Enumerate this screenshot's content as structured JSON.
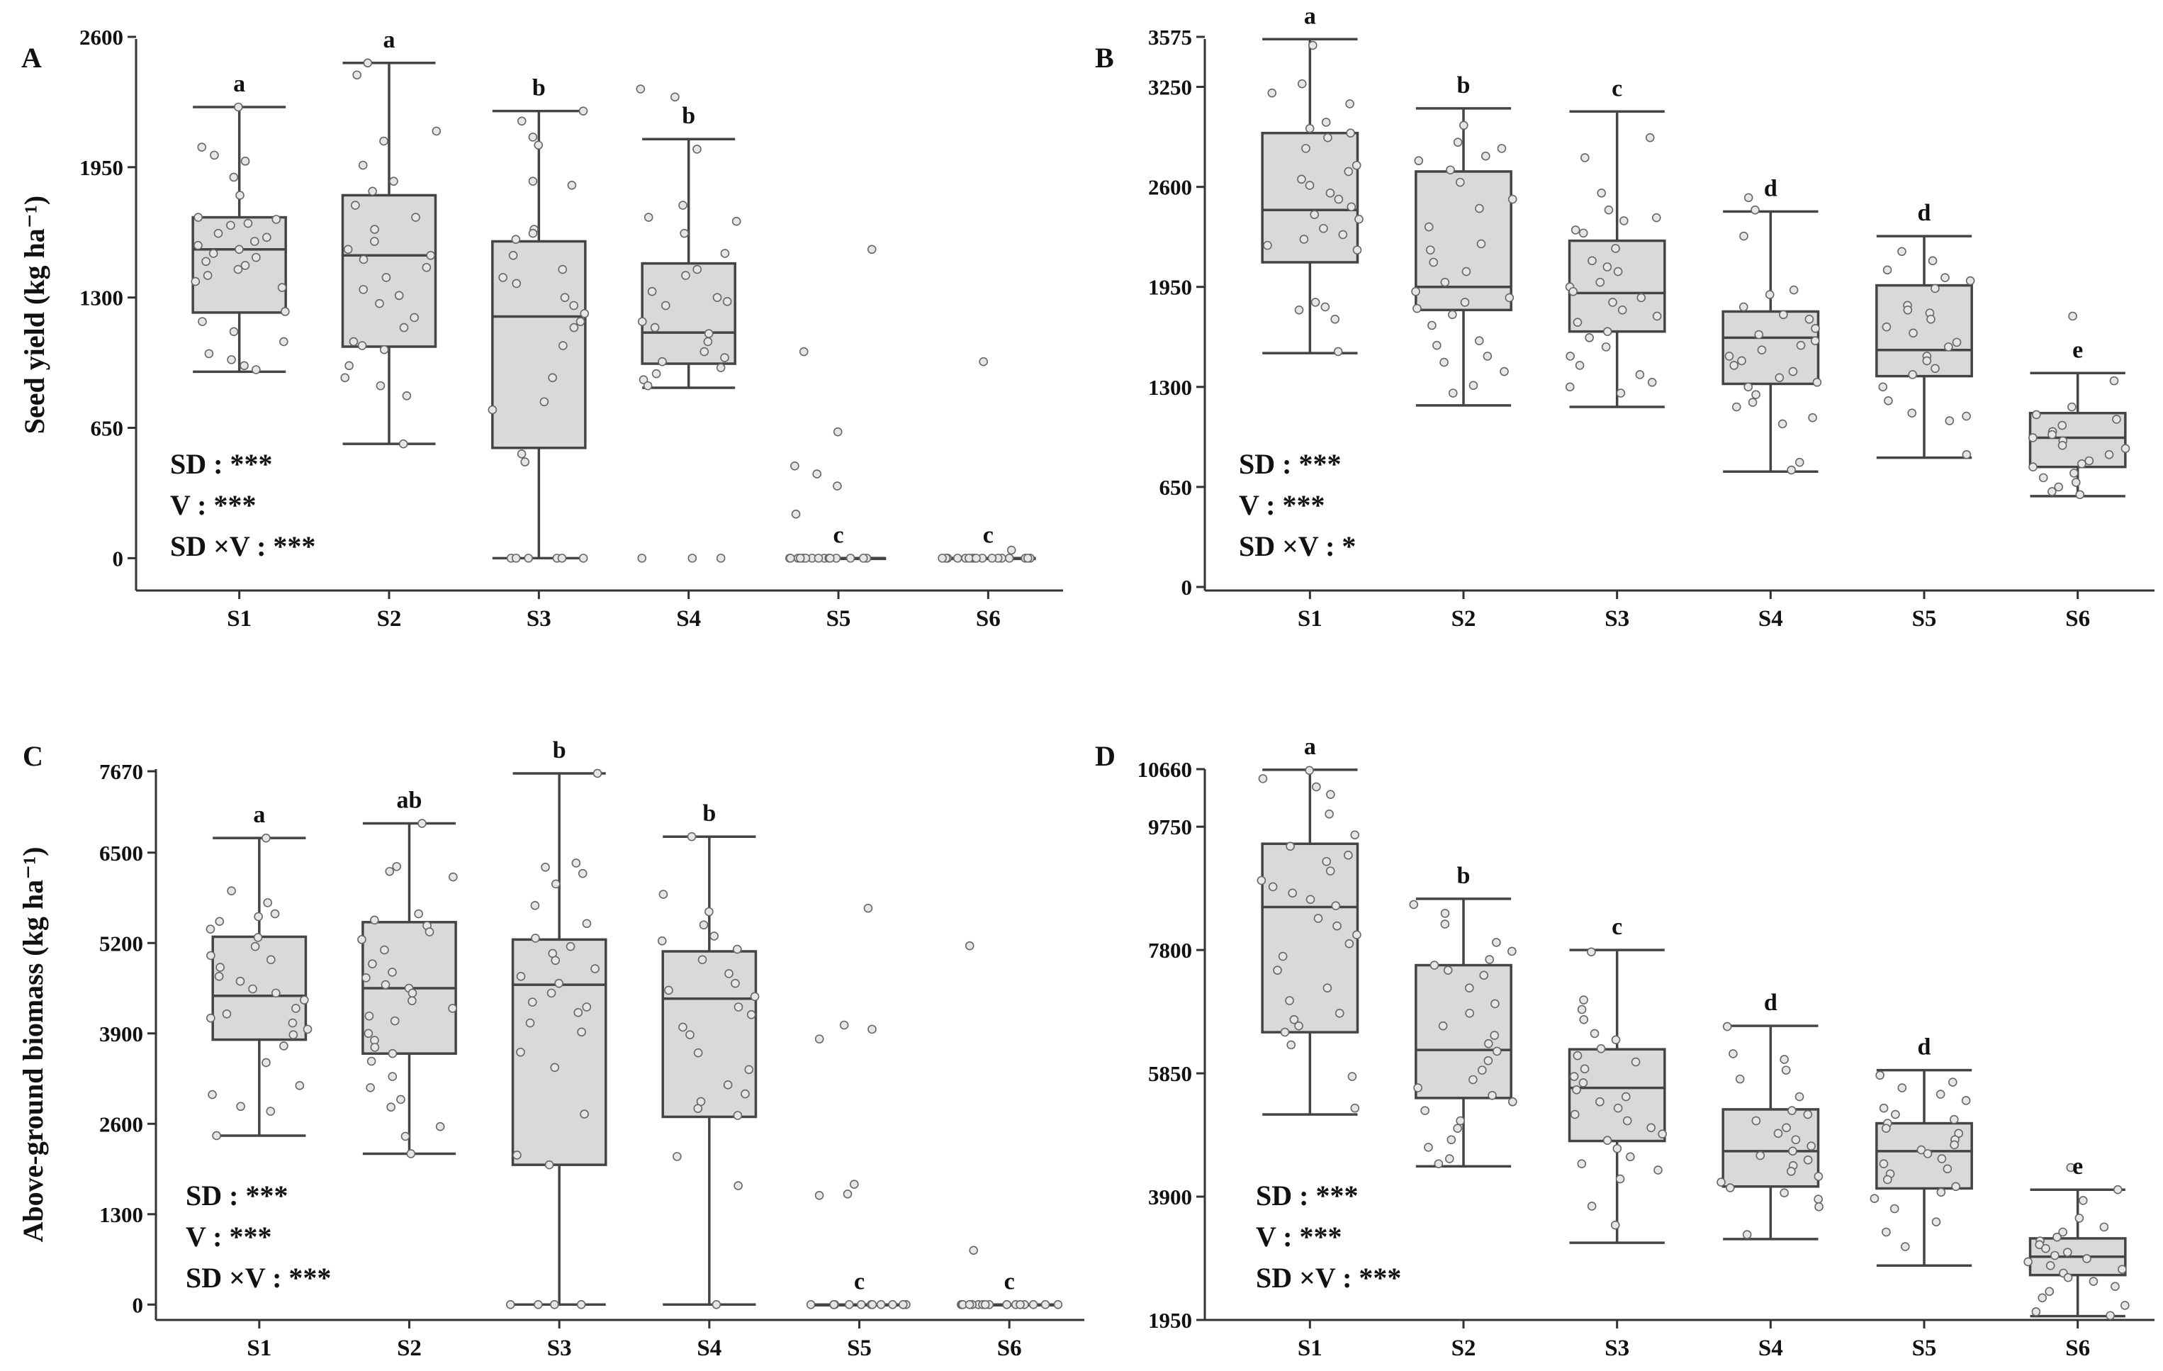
{
  "chart_data": [
    {
      "type": "box",
      "panel": "A",
      "ylabel": "Seed yield (kg ha⁻¹)",
      "yticks": [
        0,
        650,
        1300,
        1950,
        2600
      ],
      "ylim": [
        -80,
        2600
      ],
      "categories": [
        "S1",
        "S2",
        "S3",
        "S4",
        "S5",
        "S6"
      ],
      "boxes": [
        {
          "min": 930,
          "q1": 1225,
          "median": 1540,
          "q3": 1700,
          "max": 2250,
          "letter": "a"
        },
        {
          "min": 570,
          "q1": 1055,
          "median": 1510,
          "q3": 1810,
          "max": 2470,
          "letter": "a"
        },
        {
          "min": 0,
          "q1": 550,
          "median": 1205,
          "q3": 1580,
          "max": 2230,
          "letter": "b"
        },
        {
          "min": 850,
          "q1": 970,
          "median": 1125,
          "q3": 1470,
          "max": 2090,
          "letter": "b"
        },
        {
          "min": 0,
          "q1": 0,
          "median": 0,
          "q3": 0,
          "max": 0,
          "letter": "c"
        },
        {
          "min": 0,
          "q1": 0,
          "median": 0,
          "q3": 0,
          "max": 0,
          "letter": "c"
        }
      ],
      "points": [
        [
          2250,
          1980,
          2050,
          2010,
          1900,
          1810,
          1700,
          1690,
          1670,
          1660,
          1620,
          1600,
          1580,
          1560,
          1540,
          1520,
          1500,
          1480,
          1460,
          1440,
          1410,
          1380,
          1350,
          1230,
          1180,
          1130,
          1080,
          1020,
          990,
          960,
          940
        ],
        [
          2470,
          2410,
          2130,
          2080,
          1960,
          1880,
          1830,
          1760,
          1700,
          1640,
          1580,
          1540,
          1510,
          1490,
          1450,
          1400,
          1340,
          1310,
          1270,
          1200,
          1150,
          1080,
          1060,
          1040,
          960,
          900,
          860,
          810,
          570
        ],
        [
          2230,
          2180,
          2100,
          2060,
          1880,
          1860,
          1640,
          1620,
          1590,
          1510,
          1440,
          1400,
          1370,
          1300,
          1260,
          1220,
          1180,
          1150,
          1060,
          900,
          780,
          740,
          520,
          480,
          0,
          0,
          0,
          0,
          0,
          0
        ],
        [
          2340,
          2300,
          2040,
          1760,
          1700,
          1680,
          1620,
          1520,
          1440,
          1410,
          1330,
          1300,
          1280,
          1260,
          1180,
          1150,
          1120,
          1080,
          1030,
          1000,
          980,
          950,
          920,
          890,
          860,
          0,
          0,
          0
        ],
        [
          1540,
          1030,
          630,
          460,
          420,
          360,
          220,
          0,
          0,
          0,
          0,
          0,
          0,
          0,
          0,
          0,
          0,
          0,
          0,
          0,
          0,
          0
        ],
        [
          980,
          40,
          0,
          0,
          0,
          0,
          0,
          0,
          0,
          0,
          0,
          0,
          0,
          0,
          0,
          0,
          0,
          0,
          0,
          0
        ]
      ],
      "stats": [
        "SD : ***",
        "V : ***",
        "SD ×V : ***"
      ]
    },
    {
      "type": "box",
      "panel": "B",
      "ylabel": "",
      "yticks": [
        0,
        650,
        1300,
        1950,
        2600,
        3250,
        3575
      ],
      "ylim": [
        0,
        3575
      ],
      "categories": [
        "S1",
        "S2",
        "S3",
        "S4",
        "S5",
        "S6"
      ],
      "boxes": [
        {
          "min": 1520,
          "q1": 2110,
          "median": 2450,
          "q3": 2950,
          "max": 3560,
          "letter": "a"
        },
        {
          "min": 1180,
          "q1": 1800,
          "median": 1950,
          "q3": 2700,
          "max": 3110,
          "letter": "b"
        },
        {
          "min": 1170,
          "q1": 1660,
          "median": 1910,
          "q3": 2250,
          "max": 3090,
          "letter": "c"
        },
        {
          "min": 750,
          "q1": 1320,
          "median": 1620,
          "q3": 1790,
          "max": 2440,
          "letter": "d"
        },
        {
          "min": 840,
          "q1": 1370,
          "median": 1540,
          "q3": 1960,
          "max": 2280,
          "letter": "d"
        },
        {
          "min": 590,
          "q1": 780,
          "median": 970,
          "q3": 1130,
          "max": 1390,
          "letter": "e"
        }
      ],
      "points": [
        [
          3520,
          3270,
          3210,
          3140,
          3020,
          2980,
          2950,
          2920,
          2850,
          2740,
          2700,
          2650,
          2610,
          2560,
          2520,
          2470,
          2420,
          2390,
          2330,
          2290,
          2260,
          2220,
          2190,
          1850,
          1820,
          1800,
          1740,
          1530
        ],
        [
          3000,
          2890,
          2850,
          2800,
          2770,
          2710,
          2630,
          2520,
          2460,
          2340,
          2230,
          2190,
          2110,
          2050,
          1980,
          1920,
          1880,
          1850,
          1810,
          1770,
          1700,
          1600,
          1570,
          1500,
          1460,
          1400,
          1310,
          1260
        ],
        [
          2920,
          2790,
          2560,
          2450,
          2400,
          2380,
          2320,
          2300,
          2200,
          2120,
          2080,
          2050,
          1980,
          1950,
          1920,
          1880,
          1850,
          1800,
          1760,
          1720,
          1660,
          1620,
          1560,
          1500,
          1440,
          1380,
          1330,
          1300,
          1260
        ],
        [
          2530,
          2450,
          2280,
          1930,
          1900,
          1820,
          1770,
          1740,
          1680,
          1640,
          1600,
          1570,
          1540,
          1500,
          1470,
          1440,
          1400,
          1360,
          1330,
          1300,
          1250,
          1200,
          1170,
          1100,
          1060,
          810,
          760
        ],
        [
          2180,
          2120,
          2060,
          2010,
          1990,
          1940,
          1830,
          1800,
          1780,
          1740,
          1690,
          1650,
          1590,
          1560,
          1500,
          1470,
          1420,
          1380,
          1300,
          1210,
          1130,
          1110,
          1080,
          860
        ],
        [
          1760,
          1340,
          1170,
          1120,
          1090,
          1050,
          1010,
          990,
          970,
          950,
          920,
          900,
          860,
          820,
          800,
          780,
          740,
          710,
          680,
          650,
          620,
          600
        ]
      ],
      "stats": [
        "SD : ***",
        "V : ***",
        "SD ×V : *"
      ]
    },
    {
      "type": "box",
      "panel": "C",
      "ylabel": "Above-ground biomass (kg ha⁻¹)",
      "yticks": [
        0,
        1300,
        2600,
        3900,
        5200,
        6500,
        7670
      ],
      "ylim": [
        -150,
        7670
      ],
      "categories": [
        "S1",
        "S2",
        "S3",
        "S4",
        "S5",
        "S6"
      ],
      "boxes": [
        {
          "min": 2430,
          "q1": 3810,
          "median": 4440,
          "q3": 5290,
          "max": 6710,
          "letter": "a"
        },
        {
          "min": 2170,
          "q1": 3610,
          "median": 4550,
          "q3": 5500,
          "max": 6920,
          "letter": "ab"
        },
        {
          "min": 0,
          "q1": 2010,
          "median": 4600,
          "q3": 5250,
          "max": 7640,
          "letter": "b"
        },
        {
          "min": 0,
          "q1": 2700,
          "median": 4400,
          "q3": 5080,
          "max": 6730,
          "letter": "b"
        },
        {
          "min": 0,
          "q1": 0,
          "median": 0,
          "q3": 0,
          "max": 0,
          "letter": "c"
        },
        {
          "min": 0,
          "q1": 0,
          "median": 0,
          "q3": 0,
          "max": 0,
          "letter": "c"
        }
      ],
      "points": [
        [
          6710,
          5950,
          5780,
          5620,
          5580,
          5510,
          5400,
          5280,
          5150,
          5020,
          4960,
          4850,
          4720,
          4650,
          4540,
          4480,
          4380,
          4260,
          4180,
          4120,
          4050,
          3960,
          3880,
          3720,
          3480,
          3150,
          3020,
          2850,
          2780,
          2430
        ],
        [
          6920,
          6300,
          6230,
          6150,
          5620,
          5530,
          5450,
          5360,
          5250,
          5100,
          4900,
          4780,
          4700,
          4600,
          4550,
          4480,
          4370,
          4260,
          4150,
          4080,
          3900,
          3800,
          3700,
          3610,
          3500,
          3280,
          3120,
          2950,
          2840,
          2560,
          2420,
          2170
        ],
        [
          7640,
          6350,
          6290,
          6200,
          6050,
          5740,
          5480,
          5270,
          5150,
          5050,
          4950,
          4830,
          4720,
          4620,
          4480,
          4350,
          4280,
          4200,
          4050,
          3920,
          3630,
          3410,
          2740,
          2150,
          2010,
          0,
          0,
          0,
          0
        ],
        [
          6730,
          5900,
          5650,
          5460,
          5300,
          5230,
          5110,
          4960,
          4760,
          4620,
          4520,
          4430,
          4280,
          4170,
          3990,
          3880,
          3620,
          3380,
          3160,
          3030,
          2920,
          2820,
          2720,
          2130,
          1710,
          0
        ],
        [
          5700,
          4020,
          3960,
          3820,
          1730,
          1590,
          1570,
          0,
          0,
          0,
          0,
          0,
          0,
          0,
          0,
          0,
          0,
          0,
          0,
          0
        ],
        [
          5160,
          780,
          0,
          0,
          0,
          0,
          0,
          0,
          0,
          0,
          0,
          0,
          0,
          0,
          0,
          0,
          0,
          0,
          0,
          0
        ]
      ],
      "stats": [
        "SD : ***",
        "V : ***",
        "SD ×V : ***"
      ]
    },
    {
      "type": "box",
      "panel": "D",
      "ylabel": "",
      "yticks": [
        1950,
        3900,
        5850,
        7800,
        9750,
        10660
      ],
      "ylim": [
        1950,
        10660
      ],
      "categories": [
        "S1",
        "S2",
        "S3",
        "S4",
        "S5",
        "S6"
      ],
      "boxes": [
        {
          "min": 5200,
          "q1": 6500,
          "median": 8480,
          "q3": 9480,
          "max": 10650,
          "letter": "a"
        },
        {
          "min": 4380,
          "q1": 5460,
          "median": 6220,
          "q3": 7560,
          "max": 8610,
          "letter": "b"
        },
        {
          "min": 3170,
          "q1": 4780,
          "median": 5620,
          "q3": 6230,
          "max": 7800,
          "letter": "c"
        },
        {
          "min": 3230,
          "q1": 4060,
          "median": 4620,
          "q3": 5280,
          "max": 6600,
          "letter": "d"
        },
        {
          "min": 2810,
          "q1": 4030,
          "median": 4620,
          "q3": 5060,
          "max": 5900,
          "letter": "d"
        },
        {
          "min": 2010,
          "q1": 2660,
          "median": 2950,
          "q3": 3240,
          "max": 4010,
          "letter": "e"
        }
      ],
      "points": [
        [
          10640,
          10510,
          10380,
          10260,
          9950,
          9620,
          9440,
          9300,
          9200,
          9050,
          8900,
          8800,
          8700,
          8600,
          8500,
          8300,
          8180,
          8040,
          7900,
          7700,
          7480,
          7200,
          7000,
          6800,
          6700,
          6600,
          6500,
          6300,
          5800,
          5300
        ],
        [
          8520,
          8380,
          8210,
          7920,
          7780,
          7650,
          7560,
          7480,
          7400,
          7200,
          6950,
          6800,
          6600,
          6450,
          6320,
          6200,
          6050,
          5900,
          5750,
          5620,
          5500,
          5400,
          5260,
          5100,
          4980,
          4800,
          4680,
          4500,
          4420
        ],
        [
          7770,
          7010,
          6860,
          6700,
          6480,
          6380,
          6240,
          6130,
          6030,
          5920,
          5800,
          5700,
          5590,
          5480,
          5400,
          5300,
          5200,
          5100,
          4990,
          4890,
          4790,
          4660,
          4530,
          4420,
          4320,
          4180,
          3750,
          3450
        ],
        [
          6590,
          6160,
          6070,
          5900,
          5760,
          5480,
          5260,
          5200,
          5100,
          4990,
          4900,
          4800,
          4700,
          4620,
          4550,
          4480,
          4390,
          4300,
          4220,
          4130,
          4040,
          3960,
          3860,
          3740,
          3300
        ],
        [
          5820,
          5710,
          5620,
          5520,
          5420,
          5300,
          5200,
          5120,
          5060,
          4980,
          4900,
          4800,
          4720,
          4640,
          4580,
          4500,
          4420,
          4340,
          4260,
          4170,
          4060,
          3970,
          3870,
          3710,
          3500,
          3340,
          3110
        ],
        [
          4360,
          4010,
          3840,
          3560,
          3420,
          3340,
          3260,
          3200,
          3140,
          3080,
          3020,
          2970,
          2920,
          2870,
          2810,
          2750,
          2690,
          2620,
          2560,
          2480,
          2400,
          2300,
          2180,
          2080,
          2020
        ]
      ],
      "stats": [
        "SD : ***",
        "V : ***",
        "SD ×V : ***"
      ]
    }
  ]
}
